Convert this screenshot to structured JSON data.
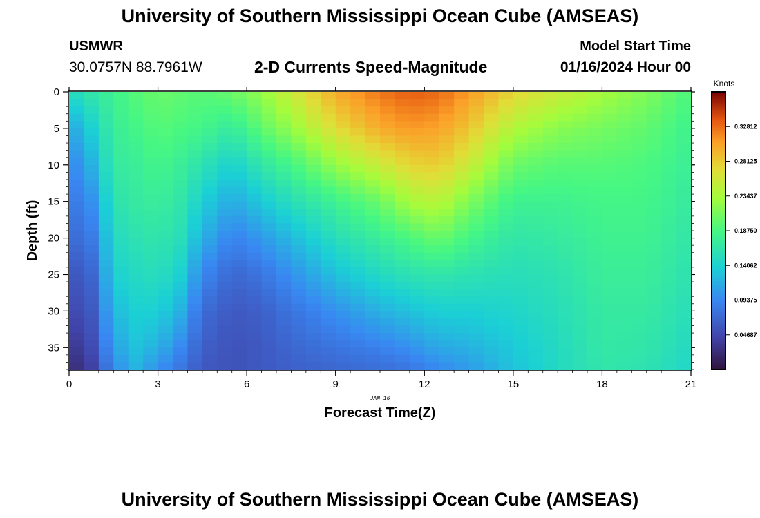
{
  "header": {
    "title": "University of Southern Mississippi Ocean Cube (AMSEAS)",
    "station": "USMWR",
    "coords": "30.0757N  88.7961W",
    "subtitle": "2-D Currents Speed-Magnitude",
    "model_start_label": "Model Start Time",
    "model_start_value": "01/16/2024 Hour 00"
  },
  "footer": {
    "title": "University of Southern Mississippi Ocean Cube (AMSEAS)"
  },
  "chart_data": {
    "type": "heatmap",
    "title": "2-D Currents Speed-Magnitude",
    "xlabel": "Forecast Time(Z)",
    "ylabel": "Depth (ft)",
    "date_annotation": "JAN 16",
    "xlim": [
      0,
      21
    ],
    "ylim": [
      0,
      38
    ],
    "x_ticks": [
      "0",
      "3",
      "6",
      "9",
      "12",
      "15",
      "18",
      "21"
    ],
    "y_ticks": [
      "0",
      "5",
      "10",
      "15",
      "20",
      "25",
      "30",
      "35"
    ],
    "colorbar": {
      "label": "Knots",
      "min": 0.0,
      "max": 0.375,
      "ticks": [
        "0.04687",
        "0.09375",
        "0.14062",
        "0.18750",
        "0.23437",
        "0.28125",
        "0.32812"
      ]
    },
    "grid": {
      "x_cells": 42,
      "y_cells": 38
    },
    "depth_profiles": {
      "depths": [
        0,
        5,
        10,
        15,
        20,
        25,
        30,
        35,
        38
      ],
      "columns": [
        {
          "t": 0,
          "values": [
            0.15,
            0.11,
            0.09,
            0.08,
            0.07,
            0.055,
            0.045,
            0.03,
            0.02
          ]
        },
        {
          "t": 0.75,
          "values": [
            0.165,
            0.14,
            0.12,
            0.1,
            0.085,
            0.07,
            0.06,
            0.05,
            0.04
          ]
        },
        {
          "t": 1.5,
          "values": [
            0.18,
            0.175,
            0.17,
            0.16,
            0.15,
            0.14,
            0.125,
            0.11,
            0.095
          ]
        },
        {
          "t": 2.25,
          "values": [
            0.195,
            0.185,
            0.175,
            0.17,
            0.16,
            0.15,
            0.14,
            0.13,
            0.12
          ]
        },
        {
          "t": 3,
          "values": [
            0.205,
            0.195,
            0.185,
            0.175,
            0.165,
            0.155,
            0.14,
            0.12,
            0.1
          ]
        },
        {
          "t": 3.75,
          "values": [
            0.2,
            0.19,
            0.175,
            0.165,
            0.155,
            0.14,
            0.12,
            0.095,
            0.08
          ]
        },
        {
          "t": 4.5,
          "values": [
            0.195,
            0.185,
            0.16,
            0.14,
            0.12,
            0.095,
            0.075,
            0.065,
            0.06
          ]
        },
        {
          "t": 5.5,
          "values": [
            0.205,
            0.17,
            0.14,
            0.115,
            0.09,
            0.07,
            0.06,
            0.055,
            0.055
          ]
        },
        {
          "t": 6.5,
          "values": [
            0.225,
            0.2,
            0.165,
            0.135,
            0.105,
            0.08,
            0.065,
            0.06,
            0.06
          ]
        },
        {
          "t": 7.5,
          "values": [
            0.255,
            0.225,
            0.185,
            0.155,
            0.125,
            0.1,
            0.08,
            0.07,
            0.065
          ]
        },
        {
          "t": 9,
          "values": [
            0.3,
            0.27,
            0.225,
            0.18,
            0.155,
            0.13,
            0.1,
            0.08,
            0.07
          ]
        },
        {
          "t": 10.5,
          "values": [
            0.325,
            0.3,
            0.255,
            0.205,
            0.175,
            0.15,
            0.12,
            0.09,
            0.075
          ]
        },
        {
          "t": 11.5,
          "values": [
            0.335,
            0.31,
            0.275,
            0.235,
            0.19,
            0.16,
            0.13,
            0.1,
            0.08
          ]
        },
        {
          "t": 12.5,
          "values": [
            0.33,
            0.305,
            0.28,
            0.245,
            0.205,
            0.165,
            0.14,
            0.115,
            0.095
          ]
        },
        {
          "t": 13.5,
          "values": [
            0.31,
            0.285,
            0.255,
            0.215,
            0.185,
            0.16,
            0.14,
            0.12,
            0.105
          ]
        },
        {
          "t": 15,
          "values": [
            0.275,
            0.24,
            0.205,
            0.18,
            0.165,
            0.155,
            0.145,
            0.135,
            0.13
          ]
        },
        {
          "t": 16.5,
          "values": [
            0.255,
            0.22,
            0.195,
            0.18,
            0.17,
            0.16,
            0.155,
            0.15,
            0.15
          ]
        },
        {
          "t": 18,
          "values": [
            0.235,
            0.21,
            0.195,
            0.185,
            0.18,
            0.175,
            0.17,
            0.168,
            0.165
          ]
        },
        {
          "t": 19.5,
          "values": [
            0.215,
            0.2,
            0.19,
            0.185,
            0.18,
            0.175,
            0.17,
            0.165,
            0.16
          ]
        },
        {
          "t": 21,
          "values": [
            0.19,
            0.18,
            0.175,
            0.17,
            0.165,
            0.16,
            0.155,
            0.15,
            0.145
          ]
        }
      ]
    }
  }
}
